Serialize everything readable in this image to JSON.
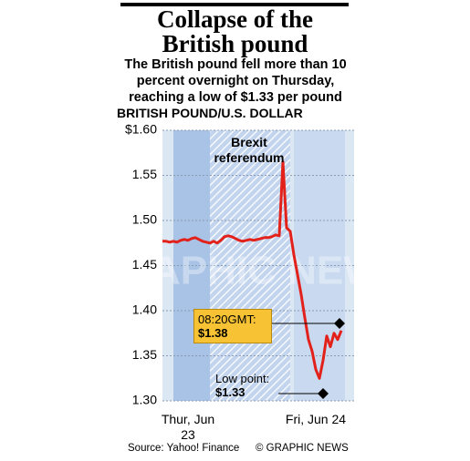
{
  "chart_data": {
    "type": "line",
    "title": "Collapse of the British pound",
    "subtitle": "The British pound fell more than 10 percent overnight on Thursday, reaching a low of $1.33 per pound",
    "y_axis_label": "BRITISH POUND/U.S. DOLLAR",
    "categories": [
      null,
      null,
      null,
      null,
      null,
      null,
      null,
      "Thur, Jun 23",
      null,
      null,
      null,
      null,
      null,
      null,
      null,
      null,
      null,
      null,
      null,
      null,
      null,
      null,
      null,
      null,
      null,
      null,
      null,
      null,
      null,
      null,
      null,
      null,
      null,
      null,
      null,
      null,
      null,
      null,
      null,
      null,
      null,
      null,
      "Fri, Jun 24",
      null,
      null,
      null,
      null,
      null,
      null,
      null
    ],
    "series": [
      {
        "name": "GBP/USD",
        "color": "#e3211b",
        "values": [
          1.477,
          1.477,
          1.476,
          1.477,
          1.476,
          1.478,
          1.479,
          1.478,
          1.48,
          1.481,
          1.479,
          1.477,
          1.476,
          1.475,
          1.477,
          1.475,
          1.478,
          1.482,
          1.483,
          1.482,
          1.48,
          1.478,
          1.477,
          1.478,
          1.479,
          1.478,
          1.479,
          1.48,
          1.481,
          1.481,
          1.482,
          1.484,
          1.483,
          1.565,
          1.492,
          1.488,
          1.462,
          1.44,
          1.418,
          1.392,
          1.368,
          1.355,
          1.335,
          1.325,
          1.345,
          1.372,
          1.36,
          1.375,
          1.368,
          1.378
        ]
      }
    ],
    "ylim": [
      1.3,
      1.6
    ],
    "yticks": [
      {
        "value": 1.6,
        "label": "$1.60"
      },
      1.55,
      {
        "value": 1.5,
        "label": "1.50"
      },
      1.45,
      {
        "value": 1.4,
        "label": "1.40"
      },
      1.35,
      {
        "value": 1.3,
        "label": "1.30"
      }
    ],
    "grid": true,
    "annotations": {
      "event": "Brexit referendum",
      "time": "08:20GMT:",
      "time_value": "$1.38",
      "low": "Low point:",
      "low_value": "$1.33"
    },
    "watermark": "GRAPHIC NEWS",
    "source": "Source: Yahoo! Finance",
    "credit": "© GRAPHIC NEWS"
  }
}
